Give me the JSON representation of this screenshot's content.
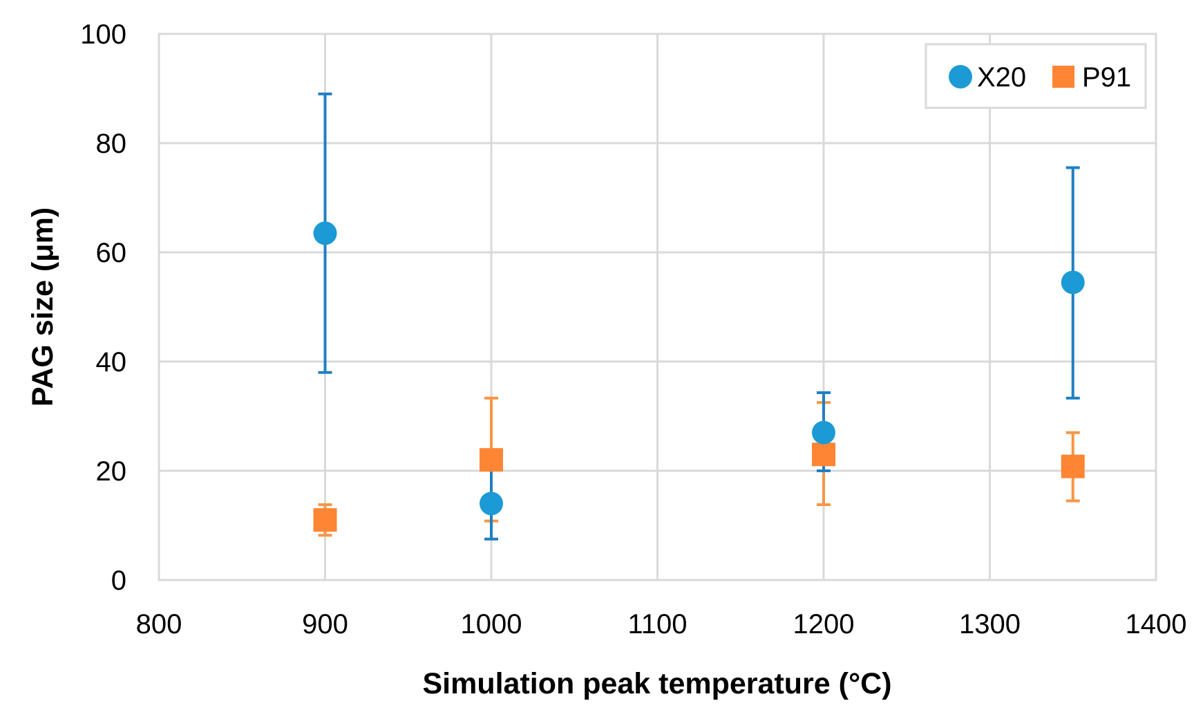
{
  "chart_data": {
    "type": "scatter",
    "title": "",
    "xlabel": "Simulation peak temperature (°C)",
    "ylabel": "PAG size (μm)",
    "xlim": [
      800,
      1400
    ],
    "ylim": [
      0,
      100
    ],
    "xticks": [
      800,
      900,
      1000,
      1100,
      1200,
      1300,
      1400
    ],
    "yticks": [
      0,
      20,
      40,
      60,
      80,
      100
    ],
    "grid": true,
    "legend_position": "top-right",
    "series": [
      {
        "name": "X20",
        "marker": "circle",
        "color": "#1b9ad6",
        "points": [
          {
            "x": 900,
            "y": 63.5,
            "err_low": 38.0,
            "err_high": 89.0
          },
          {
            "x": 1000,
            "y": 14.0,
            "err_low": 7.5,
            "err_high": 20.5
          },
          {
            "x": 1200,
            "y": 27.0,
            "err_low": 20.0,
            "err_high": 34.3
          },
          {
            "x": 1350,
            "y": 54.5,
            "err_low": 33.3,
            "err_high": 75.5
          }
        ]
      },
      {
        "name": "P91",
        "marker": "square",
        "color": "#fd8534",
        "points": [
          {
            "x": 900,
            "y": 11.0,
            "err_low": 8.2,
            "err_high": 13.8
          },
          {
            "x": 1000,
            "y": 22.0,
            "err_low": 10.8,
            "err_high": 33.3
          },
          {
            "x": 1200,
            "y": 23.0,
            "err_low": 13.8,
            "err_high": 32.5
          },
          {
            "x": 1350,
            "y": 20.8,
            "err_low": 14.5,
            "err_high": 27.0
          }
        ]
      }
    ]
  }
}
